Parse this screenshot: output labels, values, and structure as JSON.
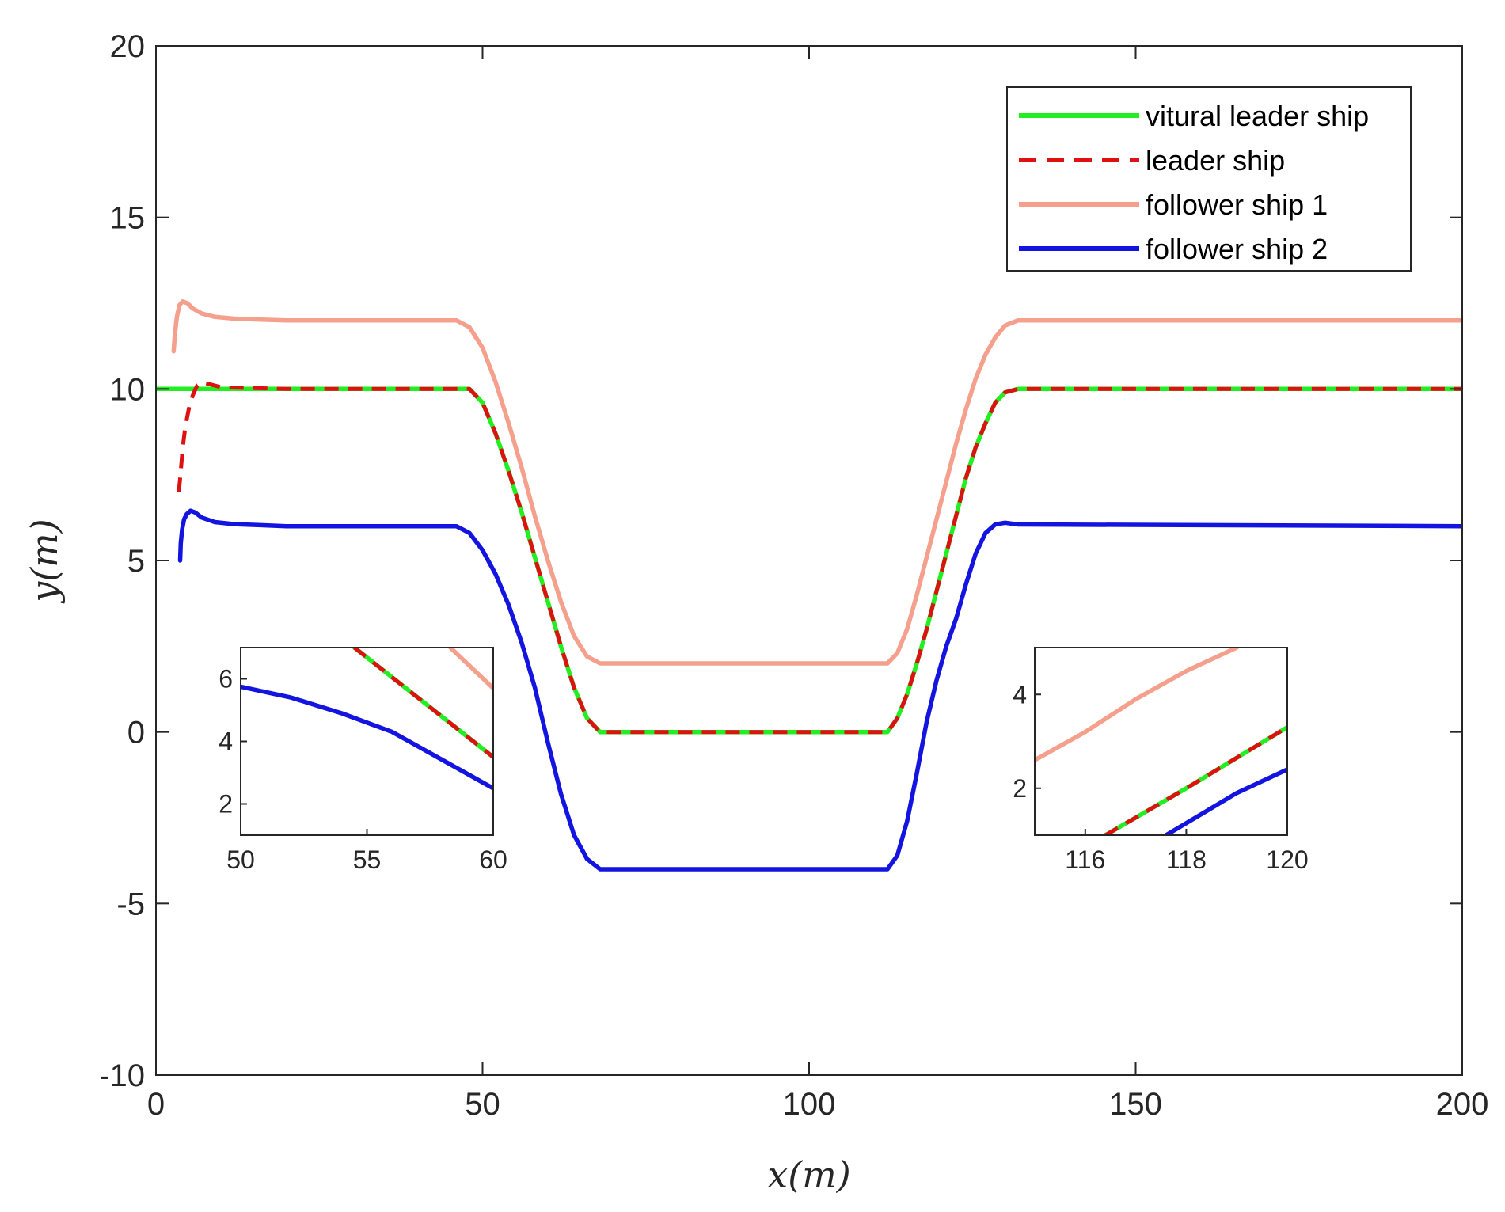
{
  "chart_data": [
    {
      "type": "line",
      "title": "",
      "xlabel": "x(m)",
      "ylabel": "y(m)",
      "xlim": [
        0,
        200
      ],
      "ylim": [
        -10,
        20
      ],
      "xticks": [
        0,
        50,
        100,
        150,
        200
      ],
      "yticks": [
        -10,
        -5,
        0,
        5,
        10,
        15,
        20
      ],
      "xtick_labels": [
        "0",
        "50",
        "100",
        "150",
        "200"
      ],
      "ytick_labels": [
        "-10",
        "-5",
        "0",
        "5",
        "10",
        "15",
        "20"
      ],
      "grid": false,
      "legend_position": "top-right",
      "series": [
        {
          "name": "vitural leader ship",
          "color": "#22ee22",
          "style": "solid",
          "x": [
            0,
            48,
            50,
            52,
            54,
            56,
            58,
            60,
            62,
            64,
            66,
            68,
            112,
            113.5,
            115,
            116.5,
            118,
            119.5,
            121,
            122.5,
            124,
            125.5,
            127,
            128.5,
            130,
            132,
            200
          ],
          "y": [
            10,
            10,
            9.6,
            8.7,
            7.6,
            6.4,
            5.1,
            3.8,
            2.5,
            1.3,
            0.4,
            0,
            0,
            0.4,
            1.1,
            2.0,
            3.0,
            4.1,
            5.2,
            6.3,
            7.4,
            8.3,
            9.0,
            9.6,
            9.9,
            10,
            10
          ]
        },
        {
          "name": "leader ship",
          "color": "#dd1111",
          "style": "dashed",
          "x": [
            3.5,
            3.8,
            4.1,
            4.5,
            5,
            5.6,
            6.3,
            7,
            8,
            10,
            20,
            48,
            50,
            52,
            54,
            56,
            58,
            60,
            62,
            64,
            66,
            68,
            112,
            113.5,
            115,
            116.5,
            118,
            119.5,
            121,
            122.5,
            124,
            125.5,
            127,
            128.5,
            130,
            132,
            200
          ],
          "y": [
            7.0,
            7.6,
            8.3,
            8.9,
            9.4,
            9.8,
            10.1,
            10.2,
            10.15,
            10.05,
            10,
            10,
            9.6,
            8.7,
            7.6,
            6.4,
            5.1,
            3.8,
            2.5,
            1.3,
            0.4,
            0,
            0,
            0.4,
            1.1,
            2.0,
            3.0,
            4.1,
            5.2,
            6.3,
            7.4,
            8.3,
            9.0,
            9.6,
            9.9,
            10,
            10
          ]
        },
        {
          "name": "follower ship 1",
          "color": "#f4a08c",
          "style": "solid",
          "x": [
            2.7,
            2.9,
            3.2,
            3.6,
            4.1,
            4.8,
            5.6,
            7,
            9,
            12,
            16,
            20,
            30,
            46,
            48,
            50,
            52,
            54,
            56,
            58,
            60,
            62,
            64,
            66,
            68,
            112,
            113.5,
            115,
            116.5,
            118,
            119.5,
            121,
            122.5,
            124,
            125.5,
            127,
            128.5,
            130,
            132,
            200
          ],
          "y": [
            11.1,
            11.6,
            12.1,
            12.45,
            12.55,
            12.5,
            12.35,
            12.2,
            12.1,
            12.05,
            12.02,
            12.0,
            12.0,
            12.0,
            11.8,
            11.2,
            10.2,
            9.0,
            7.7,
            6.3,
            5.0,
            3.8,
            2.8,
            2.2,
            2.0,
            2.0,
            2.3,
            3.0,
            4.0,
            5.1,
            6.2,
            7.3,
            8.4,
            9.4,
            10.3,
            11.0,
            11.5,
            11.85,
            12.0,
            12.0
          ]
        },
        {
          "name": "follower ship 2",
          "color": "#1414e0",
          "style": "solid",
          "x": [
            3.7,
            3.8,
            4.0,
            4.3,
            4.7,
            5.3,
            6.0,
            7,
            9,
            12,
            16,
            20,
            30,
            46,
            48,
            50,
            52,
            54,
            56,
            58,
            60,
            62,
            64,
            66,
            68,
            112,
            113.5,
            115,
            116.5,
            118,
            119.5,
            121,
            122.5,
            124,
            125.5,
            127,
            128.5,
            130,
            132,
            200
          ],
          "y": [
            5.0,
            5.5,
            5.9,
            6.2,
            6.35,
            6.45,
            6.4,
            6.25,
            6.12,
            6.06,
            6.03,
            6.0,
            6.0,
            6.0,
            5.8,
            5.3,
            4.6,
            3.7,
            2.6,
            1.3,
            -0.3,
            -1.8,
            -3.0,
            -3.7,
            -4.0,
            -4.0,
            -3.6,
            -2.6,
            -1.2,
            0.3,
            1.5,
            2.5,
            3.3,
            4.3,
            5.2,
            5.8,
            6.05,
            6.1,
            6.05,
            6.0
          ]
        }
      ],
      "legend": [
        "vitural leader ship",
        "leader ship",
        "follower ship 1",
        "follower ship 2"
      ]
    },
    {
      "type": "line",
      "title": "",
      "inset": "lower-left",
      "xlim": [
        50,
        60
      ],
      "ylim": [
        1,
        7
      ],
      "xticks": [
        50,
        55,
        60
      ],
      "yticks": [
        2,
        4,
        6
      ],
      "xtick_labels": [
        "50",
        "55",
        "60"
      ],
      "ytick_labels": [
        "2",
        "4",
        "6"
      ],
      "series": [
        {
          "name": "vitural leader ship",
          "color": "#22ee22",
          "style": "solid",
          "x": [
            54.5,
            60
          ],
          "y": [
            7.0,
            3.5
          ]
        },
        {
          "name": "leader ship",
          "color": "#dd1111",
          "style": "dashed",
          "x": [
            54.5,
            60
          ],
          "y": [
            7.0,
            3.5
          ]
        },
        {
          "name": "follower ship 1",
          "color": "#f4a08c",
          "style": "solid",
          "x": [
            58.3,
            60
          ],
          "y": [
            7.0,
            5.7
          ]
        },
        {
          "name": "follower ship 2",
          "color": "#1414e0",
          "style": "solid",
          "x": [
            50,
            52,
            54,
            56,
            58,
            60
          ],
          "y": [
            5.75,
            5.4,
            4.9,
            4.3,
            3.4,
            2.5
          ]
        }
      ]
    },
    {
      "type": "line",
      "title": "",
      "inset": "lower-right",
      "xlim": [
        115,
        120
      ],
      "ylim": [
        1,
        5
      ],
      "xticks": [
        116,
        118,
        120
      ],
      "yticks": [
        2,
        4
      ],
      "xtick_labels": [
        "116",
        "118",
        "120"
      ],
      "ytick_labels": [
        "2",
        "4"
      ],
      "series": [
        {
          "name": "follower ship 1",
          "color": "#f4a08c",
          "style": "solid",
          "x": [
            115,
            116,
            117,
            118,
            119
          ],
          "y": [
            2.6,
            3.2,
            3.9,
            4.5,
            5.0
          ]
        },
        {
          "name": "vitural leader ship",
          "color": "#22ee22",
          "style": "solid",
          "x": [
            116.4,
            118,
            120
          ],
          "y": [
            1.0,
            2.0,
            3.3
          ]
        },
        {
          "name": "leader ship",
          "color": "#dd1111",
          "style": "dashed",
          "x": [
            116.4,
            118,
            120
          ],
          "y": [
            1.0,
            2.0,
            3.3
          ]
        },
        {
          "name": "follower ship 2",
          "color": "#1414e0",
          "style": "solid",
          "x": [
            117.6,
            119,
            120
          ],
          "y": [
            1.0,
            1.9,
            2.4
          ]
        }
      ]
    }
  ]
}
